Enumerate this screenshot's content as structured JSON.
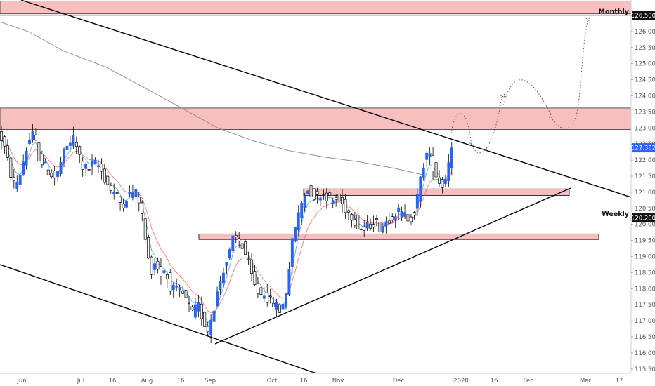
{
  "chart_data": {
    "type": "candlestick",
    "title": "",
    "xlabel": "",
    "ylabel": "",
    "ylim": [
      115.2,
      126.8
    ],
    "grid": false,
    "price_ticks": [
      "126.500",
      "126.000",
      "125.500",
      "125.000",
      "124.500",
      "124.000",
      "123.500",
      "123.000",
      "122.500",
      "122.000",
      "121.500",
      "121.000",
      "120.500",
      "120.000",
      "119.500",
      "119.000",
      "118.500",
      "118.000",
      "117.500",
      "117.000",
      "116.500",
      "116.000",
      "115.500"
    ],
    "time_ticks": [
      "Jun",
      "Jul",
      "16",
      "Aug",
      "16",
      "Sep",
      "Oct",
      "16",
      "Nov",
      "Dec",
      "2020",
      "16",
      "Feb",
      "Mar",
      "17"
    ],
    "current_price": {
      "label": "122.382",
      "value": 122.382,
      "color": "#2962ff"
    },
    "levels": [
      {
        "name": "Monthly",
        "value": 126.5,
        "label": "126.500"
      },
      {
        "name": "Weekly",
        "value": 120.2,
        "label": "120.200"
      }
    ],
    "zones": [
      {
        "y_top": 126.95,
        "y_bottom": 126.55
      },
      {
        "y_top": 123.62,
        "y_bottom": 122.95
      },
      {
        "y_top": 121.1,
        "y_bottom": 120.9
      },
      {
        "y_top": 119.7,
        "y_bottom": 119.53
      }
    ],
    "colors": {
      "up": "#2962ff",
      "down": "#000000",
      "zone": "#f8bfbf",
      "ema_fast": "#4fa3ff",
      "ema_slow": "#ff6b6b",
      "sma": "#8c8c8c"
    }
  }
}
